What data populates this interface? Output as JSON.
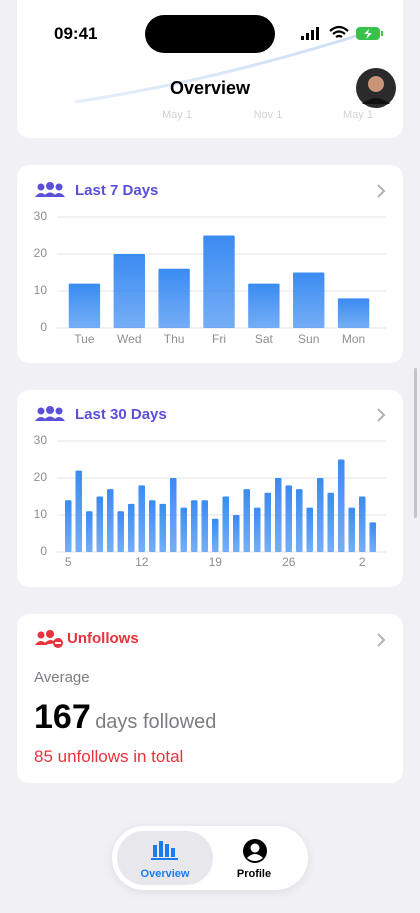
{
  "status_bar": {
    "time": "09:41"
  },
  "header": {
    "title": "Overview",
    "background_labels": [
      "May 1",
      "Nov 1",
      "May 1"
    ]
  },
  "cards": [
    {
      "title": "Last 7 Days",
      "chart": {
        "type": "bar",
        "categories": [
          "Tue",
          "Wed",
          "Thu",
          "Fri",
          "Sat",
          "Sun",
          "Mon"
        ],
        "values": [
          12,
          20,
          16,
          25,
          12,
          15,
          8
        ],
        "ylim": [
          0,
          30
        ],
        "yticks": [
          0,
          10,
          20,
          30
        ],
        "grid": true,
        "color": "#3a8bf2"
      }
    },
    {
      "title": "Last 30 Days",
      "chart": {
        "type": "bar",
        "categories": [
          "5",
          null,
          null,
          null,
          null,
          null,
          null,
          "12",
          null,
          null,
          null,
          null,
          null,
          null,
          "19",
          null,
          null,
          null,
          null,
          null,
          null,
          "26",
          null,
          null,
          null,
          null,
          null,
          null,
          "2",
          null
        ],
        "values": [
          14,
          22,
          11,
          15,
          17,
          11,
          13,
          18,
          14,
          13,
          20,
          12,
          14,
          14,
          9,
          15,
          10,
          17,
          12,
          16,
          20,
          18,
          17,
          12,
          20,
          16,
          25,
          12,
          15,
          8
        ],
        "ylim": [
          0,
          30
        ],
        "yticks": [
          0,
          10,
          20,
          30
        ],
        "grid": true,
        "color": "#3a8bf2"
      }
    }
  ],
  "unfollows": {
    "title": "Unfollows",
    "label": "Average",
    "value": 167,
    "unit": "days followed",
    "total": "85 unfollows in total"
  },
  "tab_bar": {
    "tabs": [
      "Overview",
      "Profile"
    ]
  }
}
